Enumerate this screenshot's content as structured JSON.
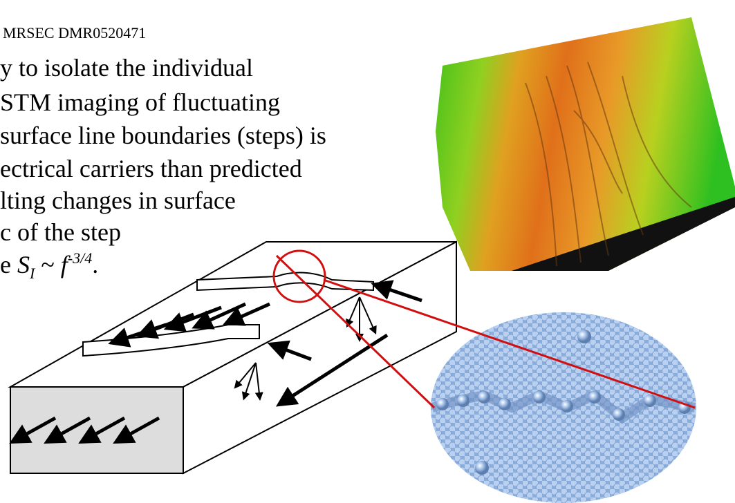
{
  "header": {
    "grant": "MRSEC DMR0520471"
  },
  "body": {
    "lines": [
      "y to isolate the individual",
      "STM imaging of fluctuating",
      "surface line boundaries (steps) is",
      "ectrical carriers than predicted",
      "lting changes in surface",
      "c of the step"
    ],
    "formula": {
      "lead": "e ",
      "symbol": "S",
      "subscript": "I",
      "relation": " ~ ",
      "variable": "f",
      "exponent": "-3/4",
      "end": "."
    }
  }
}
